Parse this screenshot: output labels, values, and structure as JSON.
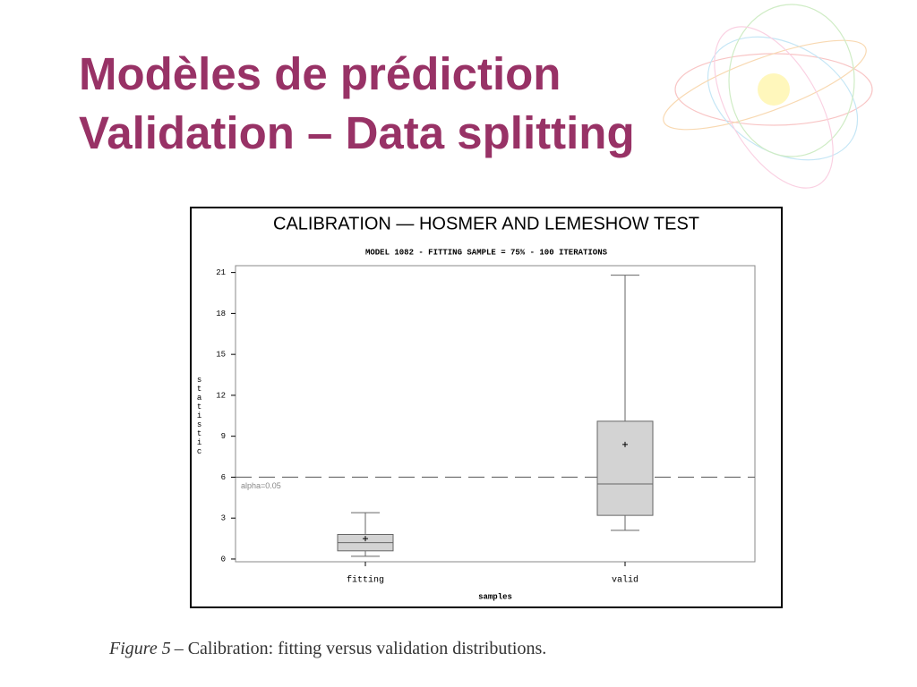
{
  "slide": {
    "title_lines": [
      "Modèles de prédiction",
      "Validation – Data splitting"
    ],
    "caption_label": "Figure 5",
    "caption": "– Calibration: fitting versus validation distributions."
  },
  "chart_data": {
    "type": "box",
    "title": "CALIBRATION — HOSMER AND LEMESHOW TEST",
    "subtitle": "MODEL 1082 - FITTING SAMPLE = 75% - 100 ITERATIONS",
    "x_label": "samples",
    "y_label": "statistic",
    "categories": [
      "fitting",
      "valid"
    ],
    "boxes": [
      {
        "low": 0.2,
        "q1": 0.6,
        "median": 1.2,
        "q3": 1.8,
        "high": 3.4,
        "mean": 1.5
      },
      {
        "low": 2.1,
        "q1": 3.2,
        "median": 5.5,
        "q3": 10.1,
        "high": 20.8,
        "mean": 8.4
      }
    ],
    "color": "#d3d3d3",
    "reference_lines": [
      {
        "value": 6,
        "label": "alpha=0.05"
      }
    ],
    "ylim": [
      -0.2,
      21.5
    ],
    "yticks": [
      0,
      3,
      6,
      9,
      12,
      15,
      18,
      21
    ]
  }
}
